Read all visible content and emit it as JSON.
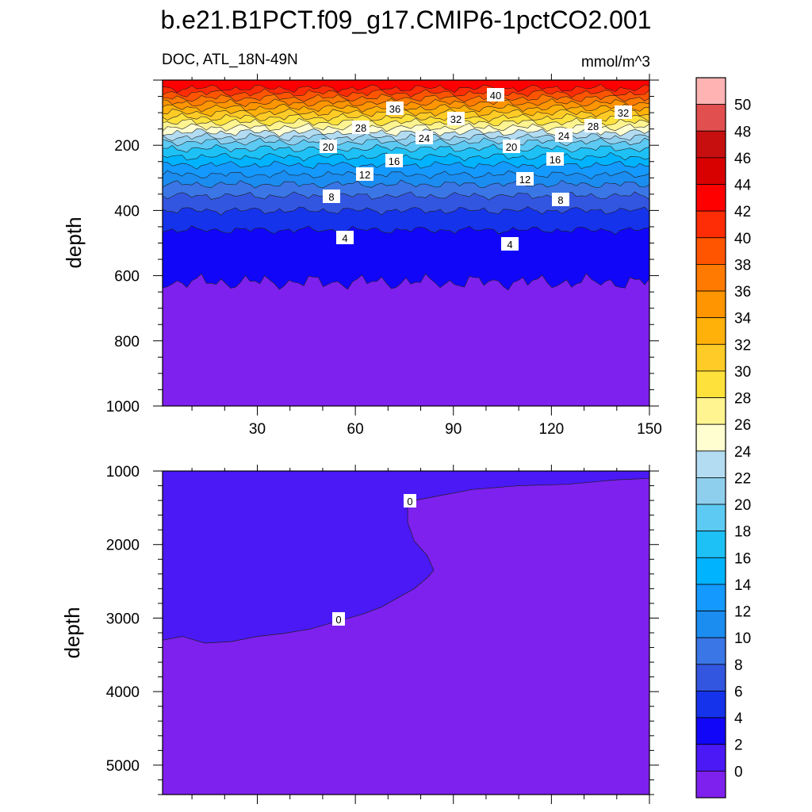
{
  "title": "b.e21.B1PCT.f09_g17.CMIP6-1pctCO2.001",
  "colors": {
    "palette": [
      "#7e20ee",
      "#4a19f6",
      "#1106f7",
      "#1533ea",
      "#3356e0",
      "#3a76e6",
      "#1b8cf0",
      "#1499ff",
      "#00b3ff",
      "#1ec1f6",
      "#5ccaf3",
      "#8fcfee",
      "#b3dcf2",
      "#fffed0",
      "#fff490",
      "#ffe13c",
      "#ffcb26",
      "#ffb10a",
      "#ff9500",
      "#ff7a00",
      "#ff5400",
      "#ff2d06",
      "#ff0000",
      "#d90000",
      "#c80f0f",
      "#e24f4f",
      "#ffb3b3"
    ],
    "contour_line": "#202020",
    "frame": "#000000"
  },
  "colorbar": {
    "labels": [
      "50",
      "48",
      "46",
      "44",
      "42",
      "40",
      "38",
      "36",
      "34",
      "32",
      "30",
      "28",
      "26",
      "24",
      "22",
      "20",
      "18",
      "16",
      "14",
      "12",
      "10",
      "8",
      "6",
      "4",
      "2",
      "0"
    ]
  },
  "chart_data": [
    {
      "type": "heatmap",
      "subtitle_left": "DOC, ATL_18N-49N",
      "subtitle_right": "mmol/m^3",
      "ylabel": "depth",
      "xlim": [
        1,
        150
      ],
      "ylim": [
        0,
        1000
      ],
      "y_inverted": true,
      "x_ticks": [
        "30",
        "60",
        "90",
        "120",
        "150"
      ],
      "y_ticks": [
        "200",
        "400",
        "600",
        "800",
        "1000"
      ],
      "levels": [
        0,
        2,
        4,
        6,
        8,
        10,
        12,
        14,
        16,
        18,
        20,
        22,
        24,
        26,
        28,
        30,
        32,
        34,
        36,
        38,
        40,
        42,
        44,
        46,
        48,
        50
      ],
      "contour_labels": [
        "40",
        "36",
        "32",
        "32",
        "28",
        "28",
        "24",
        "24",
        "20",
        "20",
        "16",
        "16",
        "12",
        "12",
        "8",
        "8",
        "4",
        "4"
      ],
      "contour_depths": [
        {
          "level": 42,
          "depth": 25
        },
        {
          "level": 40,
          "depth": 40
        },
        {
          "level": 38,
          "depth": 55
        },
        {
          "level": 36,
          "depth": 70
        },
        {
          "level": 34,
          "depth": 85
        },
        {
          "level": 32,
          "depth": 100
        },
        {
          "level": 30,
          "depth": 115
        },
        {
          "level": 28,
          "depth": 130
        },
        {
          "level": 26,
          "depth": 145
        },
        {
          "level": 24,
          "depth": 160
        },
        {
          "level": 22,
          "depth": 175
        },
        {
          "level": 20,
          "depth": 190
        },
        {
          "level": 18,
          "depth": 210
        },
        {
          "level": 16,
          "depth": 235
        },
        {
          "level": 14,
          "depth": 260
        },
        {
          "level": 12,
          "depth": 290
        },
        {
          "level": 10,
          "depth": 320
        },
        {
          "level": 8,
          "depth": 355
        },
        {
          "level": 6,
          "depth": 400
        },
        {
          "level": 4,
          "depth": 460
        },
        {
          "level": 2,
          "depth": 620
        }
      ]
    },
    {
      "type": "heatmap",
      "ylabel": "depth",
      "xlim": [
        1,
        150
      ],
      "ylim": [
        1000,
        5400
      ],
      "y_inverted": true,
      "y_ticks": [
        "1000",
        "2000",
        "3000",
        "4000",
        "5000"
      ],
      "contour_labels": [
        "0",
        "0"
      ],
      "zero_contour": {
        "x": [
          1,
          7,
          14,
          22,
          30,
          38,
          46,
          54,
          62,
          68,
          74,
          78,
          82,
          84,
          82,
          78,
          76,
          76,
          78,
          84,
          96,
          110,
          125,
          140,
          150
        ],
        "depth": [
          3300,
          3250,
          3340,
          3320,
          3250,
          3210,
          3150,
          3050,
          2950,
          2850,
          2700,
          2600,
          2450,
          2350,
          2150,
          1950,
          1700,
          1500,
          1400,
          1350,
          1250,
          1200,
          1180,
          1120,
          1100
        ]
      }
    }
  ]
}
